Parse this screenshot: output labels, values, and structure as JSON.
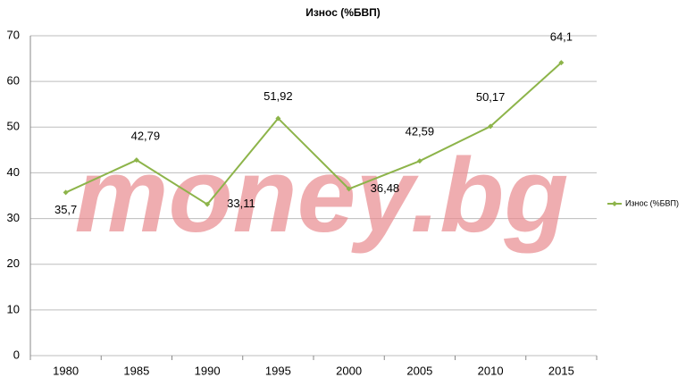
{
  "chart_data": {
    "type": "line",
    "title": "Износ (%БВП)",
    "categories": [
      "1980",
      "1985",
      "1990",
      "1995",
      "2000",
      "2005",
      "2010",
      "2015"
    ],
    "series": [
      {
        "name": "Износ (%БВП)",
        "color": "#8db44a",
        "values": [
          35.7,
          42.79,
          33.11,
          51.92,
          36.48,
          42.59,
          50.17,
          64.1
        ],
        "value_labels": [
          "35,7",
          "42,79",
          "33,11",
          "51,92",
          "36,48",
          "42,59",
          "50,17",
          "64,1"
        ]
      }
    ],
    "ylim": [
      0,
      70
    ],
    "yticks": [
      0,
      10,
      20,
      30,
      40,
      50,
      60,
      70
    ],
    "grid": true,
    "legend": "right",
    "watermark": "money.bg"
  }
}
